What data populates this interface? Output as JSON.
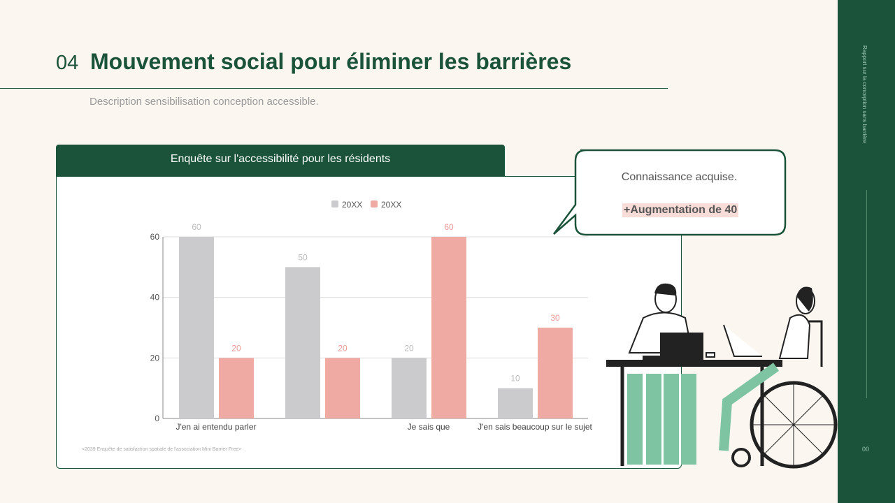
{
  "header": {
    "number": "04",
    "title": "Mouvement social pour éliminer les barrières",
    "description": "Description sensibilisation conception accessible."
  },
  "sidebar": {
    "title": "Rapport sur la conception sans barrière",
    "page": "00"
  },
  "card": {
    "title": "Enquête sur l'accessibilité pour les résidents",
    "source_note": "<2039 Enquête de satisfaction spatiale de l'association Mini Barrier Free>"
  },
  "callout": {
    "text": "Connaissance acquise.",
    "highlight": "+Augmentation de 40",
    "highlight_color": "#f8dcd8"
  },
  "chart_data": {
    "type": "bar",
    "categories": [
      "J'en ai entendu parler",
      "",
      "Je sais que",
      "J'en sais beaucoup sur le sujet"
    ],
    "series": [
      {
        "name": "20XX",
        "color": "#cbcbcd",
        "values": [
          60,
          50,
          20,
          10
        ]
      },
      {
        "name": "20XX",
        "color": "#efaaa3",
        "values": [
          20,
          20,
          60,
          30
        ]
      }
    ],
    "yticks": [
      0,
      20,
      40,
      60
    ],
    "ylim": [
      0,
      60
    ],
    "grid": true,
    "legend": "top"
  }
}
